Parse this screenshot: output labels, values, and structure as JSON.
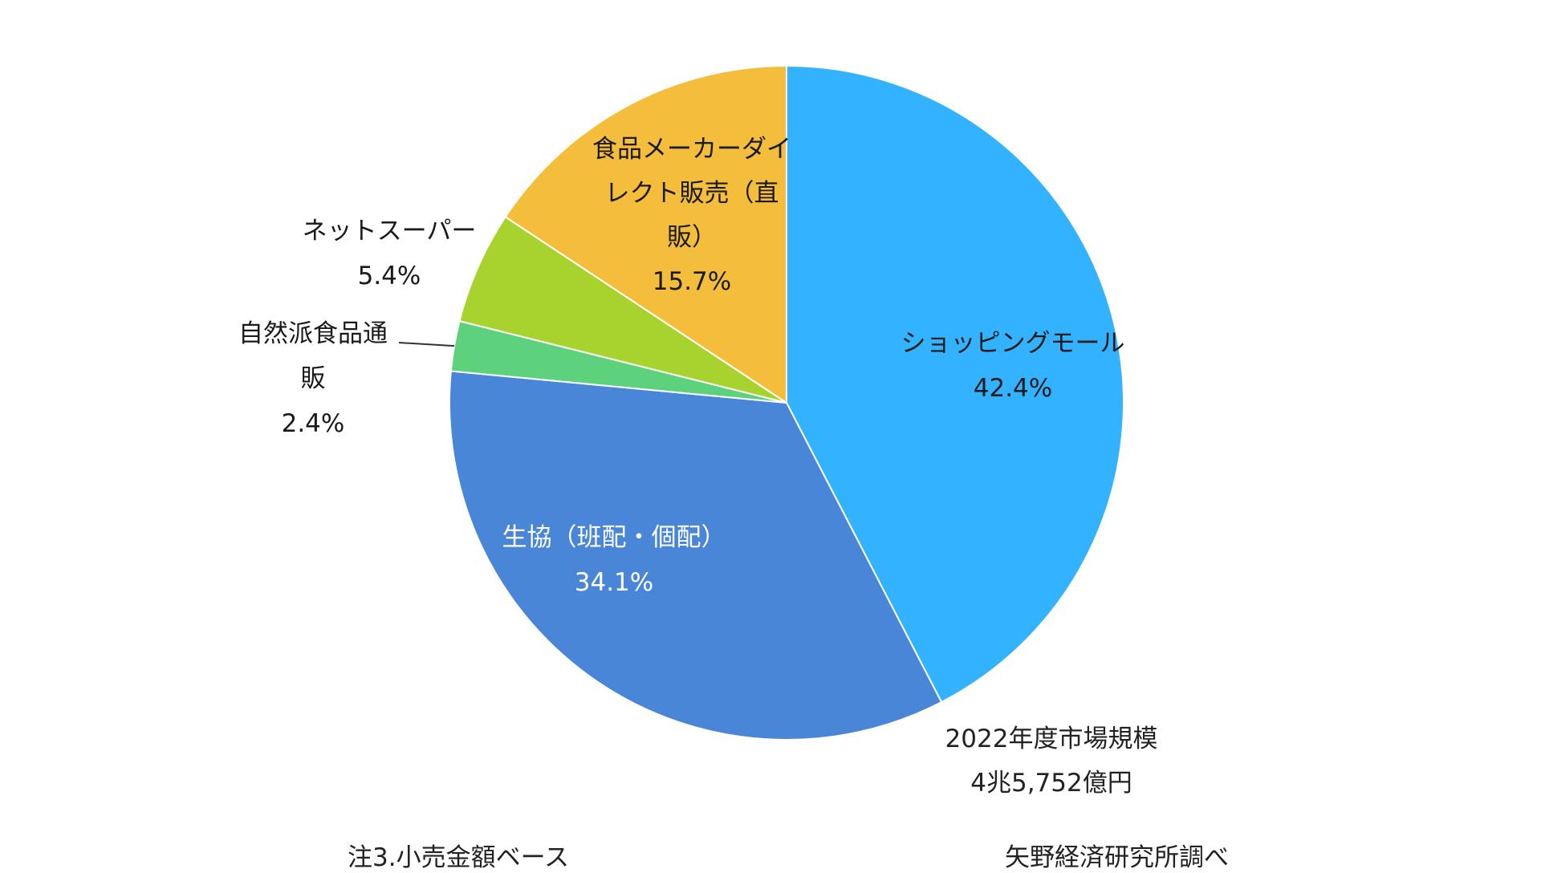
{
  "chart_data": {
    "type": "pie",
    "slices": [
      {
        "label_lines": [
          "ショッピングモール"
        ],
        "value": 42.4,
        "value_label": "42.4%",
        "color": "#33b3ff",
        "label_color": "dark"
      },
      {
        "label_lines": [
          "生協（班配・個配）"
        ],
        "value": 34.1,
        "value_label": "34.1%",
        "color": "#4a86d8",
        "label_color": "light"
      },
      {
        "label_lines": [
          "自然派食品通",
          "販"
        ],
        "value": 2.4,
        "value_label": "2.4%",
        "color": "#5ed17c",
        "label_color": "dark"
      },
      {
        "label_lines": [
          "ネットスーパー"
        ],
        "value": 5.4,
        "value_label": "5.4%",
        "color": "#a8d22e",
        "label_color": "dark"
      },
      {
        "label_lines": [
          "食品メーカーダイ",
          "レクト販売（直",
          "販）"
        ],
        "value": 15.7,
        "value_label": "15.7%",
        "color": "#f4bd3c",
        "label_color": "dark"
      }
    ],
    "start": "12 o'clock",
    "direction": "clockwise"
  },
  "annotation": {
    "market_size_line1": "2022年度市場規模",
    "market_size_line2": "4兆5,752億円"
  },
  "footer": {
    "note": "注3.小売金額ベース",
    "source": "矢野経済研究所調べ"
  }
}
